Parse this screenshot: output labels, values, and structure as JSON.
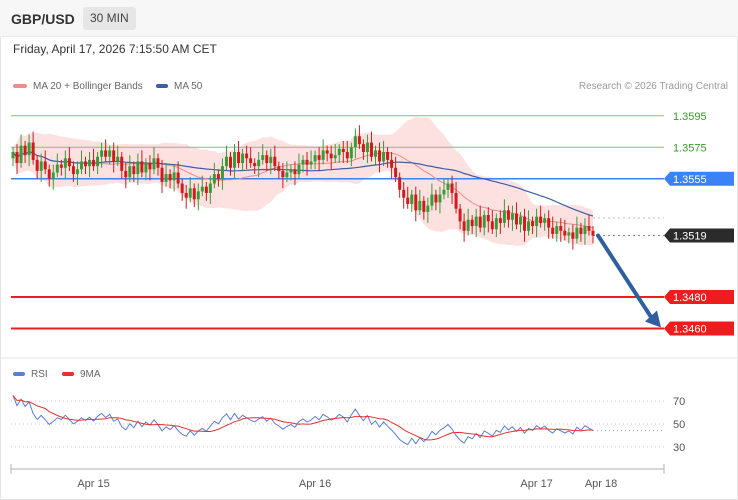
{
  "header": {
    "pair": "GBP/USD",
    "timeframe": "30 MIN"
  },
  "datetime": "Friday, April 17, 2026 7:15:50 AM CET",
  "legend": {
    "ma": "MA 20 + Bollinger Bands",
    "ma50": "MA 50",
    "rsi": "RSI",
    "ma9": "9MA"
  },
  "copyright": "Research © 2026 Trading Central",
  "colors": {
    "bullish": "#3a9b3a",
    "bearish": "#d11a1a",
    "ma20": "#f08c8c",
    "bbands": "#fde0e0",
    "ma50": "#3a5fa6",
    "resistance": "#8cc06a",
    "pivot": "#3b82f6",
    "support": "#ee1c1c",
    "current": "#2b2b2b",
    "arrow": "#2f5f9e",
    "rsi": "#5a7fd6",
    "rsi_ma": "#e33131"
  },
  "chart_data": {
    "type": "candlestick",
    "instrument": "GBP/USD",
    "timeframe": "30 MIN",
    "ylim": [
      1.344,
      1.3605
    ],
    "levels": [
      {
        "label": "1.3595",
        "value": 1.3595,
        "kind": "resistance"
      },
      {
        "label": "1.3575",
        "value": 1.3575,
        "kind": "resistance"
      },
      {
        "label": "1.3555",
        "value": 1.3555,
        "kind": "pivot"
      },
      {
        "label": "1.3519",
        "value": 1.3519,
        "kind": "current"
      },
      {
        "label": "1.3480",
        "value": 1.348,
        "kind": "support"
      },
      {
        "label": "1.3460",
        "value": 1.346,
        "kind": "support"
      }
    ],
    "x_labels": [
      "Apr 15",
      "Apr 16",
      "Apr 17",
      "Apr 18"
    ],
    "x_label_bars": [
      20,
      75,
      130,
      146
    ],
    "close": [
      1.3572,
      1.3565,
      1.3576,
      1.357,
      1.3578,
      1.3567,
      1.356,
      1.3566,
      1.3561,
      1.3555,
      1.3559,
      1.3564,
      1.3562,
      1.3568,
      1.3563,
      1.3558,
      1.3561,
      1.3566,
      1.3563,
      1.3567,
      1.3563,
      1.3569,
      1.3573,
      1.3569,
      1.3573,
      1.3566,
      1.3569,
      1.356,
      1.3556,
      1.3563,
      1.3558,
      1.3566,
      1.3559,
      1.3565,
      1.3561,
      1.3568,
      1.3562,
      1.3553,
      1.3558,
      1.3554,
      1.3559,
      1.3552,
      1.3546,
      1.3543,
      1.3549,
      1.3542,
      1.3547,
      1.355,
      1.3546,
      1.3552,
      1.3558,
      1.3555,
      1.3563,
      1.3569,
      1.3562,
      1.3572,
      1.3565,
      1.3571,
      1.3568,
      1.3565,
      1.3563,
      1.3567,
      1.357,
      1.3565,
      1.3569,
      1.3563,
      1.356,
      1.3556,
      1.3559,
      1.3561,
      1.3558,
      1.3564,
      1.3567,
      1.3564,
      1.3566,
      1.357,
      1.3567,
      1.3573,
      1.3571,
      1.3568,
      1.357,
      1.3574,
      1.3572,
      1.3568,
      1.3575,
      1.3582,
      1.3577,
      1.3572,
      1.3578,
      1.3569,
      1.3573,
      1.3566,
      1.3572,
      1.3567,
      1.3562,
      1.3556,
      1.3548,
      1.3543,
      1.3539,
      1.3545,
      1.3535,
      1.3541,
      1.3534,
      1.3538,
      1.3545,
      1.354,
      1.3545,
      1.3548,
      1.3552,
      1.3546,
      1.3536,
      1.3528,
      1.3522,
      1.3529,
      1.3525,
      1.3531,
      1.3524,
      1.3532,
      1.3528,
      1.3523,
      1.353,
      1.3527,
      1.3535,
      1.3529,
      1.3533,
      1.3526,
      1.3531,
      1.3522,
      1.3528,
      1.3525,
      1.3531,
      1.3527,
      1.353,
      1.3524,
      1.352,
      1.3525,
      1.3522,
      1.3519,
      1.3521,
      1.3517,
      1.3524,
      1.352,
      1.3525,
      1.3522,
      1.3519
    ],
    "rsi": {
      "levels": [
        70,
        50,
        30
      ]
    }
  }
}
